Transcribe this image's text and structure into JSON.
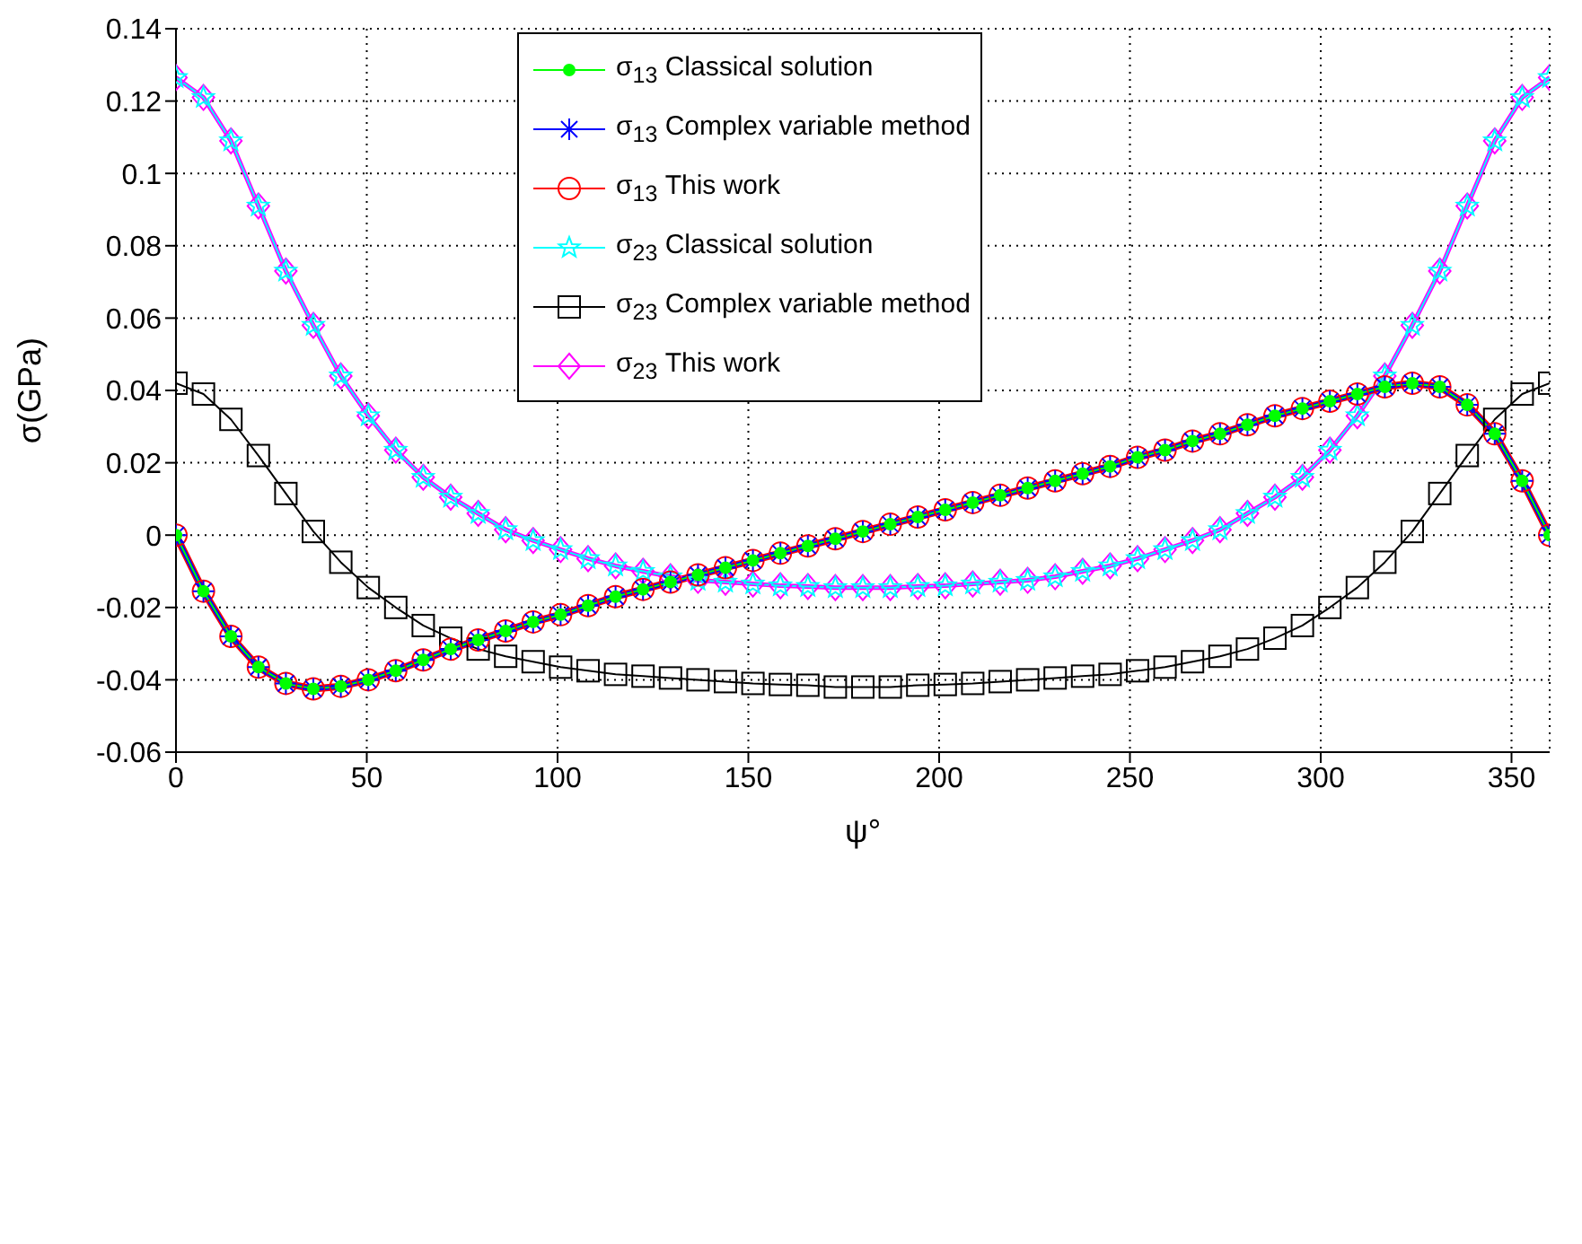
{
  "chart_data": {
    "type": "line",
    "xlabel": "ψ°",
    "ylabel": "σ(GPa)",
    "x": [
      0,
      7.2,
      14.4,
      21.6,
      28.8,
      36,
      43.2,
      50.4,
      57.6,
      64.8,
      72,
      79.2,
      86.4,
      93.6,
      100.8,
      108,
      115.2,
      122.4,
      129.6,
      136.8,
      144,
      151.2,
      158.4,
      165.6,
      172.8,
      180,
      187.2,
      194.4,
      201.6,
      208.8,
      216,
      223.2,
      230.4,
      237.6,
      244.8,
      252,
      259.2,
      266.4,
      273.6,
      280.8,
      288,
      295.2,
      302.4,
      309.6,
      316.8,
      324,
      331.2,
      338.4,
      345.6,
      352.8,
      360
    ],
    "series": [
      {
        "name": "σ$_{13}$ Classical solution",
        "color": "#00ff00",
        "marker": "circle",
        "values": [
          0,
          -0.0155,
          -0.028,
          -0.0365,
          -0.041,
          -0.0425,
          -0.0418,
          -0.04,
          -0.0375,
          -0.0345,
          -0.0315,
          -0.029,
          -0.0265,
          -0.024,
          -0.022,
          -0.0195,
          -0.017,
          -0.015,
          -0.013,
          -0.011,
          -0.009,
          -0.007,
          -0.005,
          -0.003,
          -0.001,
          0.001,
          0.003,
          0.005,
          0.007,
          0.009,
          0.011,
          0.013,
          0.015,
          0.017,
          0.019,
          0.0215,
          0.0235,
          0.026,
          0.028,
          0.0305,
          0.033,
          0.035,
          0.037,
          0.039,
          0.041,
          0.042,
          0.041,
          0.036,
          0.028,
          0.015,
          0
        ]
      },
      {
        "name": "σ$_{13}$ Complex variable method",
        "color": "#0000ff",
        "marker": "cross",
        "values": [
          0,
          -0.0155,
          -0.028,
          -0.0365,
          -0.041,
          -0.0425,
          -0.0418,
          -0.04,
          -0.0375,
          -0.0345,
          -0.0315,
          -0.029,
          -0.0265,
          -0.024,
          -0.022,
          -0.0195,
          -0.017,
          -0.015,
          -0.013,
          -0.011,
          -0.009,
          -0.007,
          -0.005,
          -0.003,
          -0.001,
          0.001,
          0.003,
          0.005,
          0.007,
          0.009,
          0.011,
          0.013,
          0.015,
          0.017,
          0.019,
          0.0215,
          0.0235,
          0.026,
          0.028,
          0.0305,
          0.033,
          0.035,
          0.037,
          0.039,
          0.041,
          0.042,
          0.041,
          0.036,
          0.028,
          0.015,
          0
        ]
      },
      {
        "name": "σ$_{13}$ This work",
        "color": "#ff0000",
        "marker": "circle",
        "values": [
          0,
          -0.0155,
          -0.028,
          -0.0365,
          -0.041,
          -0.0425,
          -0.0418,
          -0.04,
          -0.0375,
          -0.0345,
          -0.0315,
          -0.029,
          -0.0265,
          -0.024,
          -0.022,
          -0.0195,
          -0.017,
          -0.015,
          -0.013,
          -0.011,
          -0.009,
          -0.007,
          -0.005,
          -0.003,
          -0.001,
          0.001,
          0.003,
          0.005,
          0.007,
          0.009,
          0.011,
          0.013,
          0.015,
          0.017,
          0.019,
          0.0215,
          0.0235,
          0.026,
          0.028,
          0.0305,
          0.033,
          0.035,
          0.037,
          0.039,
          0.041,
          0.042,
          0.041,
          0.036,
          0.028,
          0.015,
          0
        ]
      },
      {
        "name": "σ$_{23}$ Classical solution",
        "color": "#00ffff",
        "marker": "star",
        "values": [
          0.1265,
          0.121,
          0.109,
          0.091,
          0.073,
          0.058,
          0.044,
          0.033,
          0.0235,
          0.016,
          0.0105,
          0.006,
          0.0015,
          -0.0015,
          -0.004,
          -0.0065,
          -0.0085,
          -0.01,
          -0.0115,
          -0.0125,
          -0.013,
          -0.0135,
          -0.014,
          -0.0142,
          -0.0145,
          -0.0145,
          -0.0145,
          -0.0142,
          -0.014,
          -0.0135,
          -0.013,
          -0.0125,
          -0.0115,
          -0.01,
          -0.0085,
          -0.0065,
          -0.004,
          -0.0015,
          0.0015,
          0.006,
          0.0105,
          0.016,
          0.0235,
          0.033,
          0.044,
          0.058,
          0.073,
          0.091,
          0.109,
          0.121,
          0.1265
        ]
      },
      {
        "name": "σ$_{23}$ Complex variable method",
        "color": "#000000",
        "marker": "square",
        "values": [
          0.042,
          0.039,
          0.032,
          0.022,
          0.0115,
          0.001,
          -0.0075,
          -0.0145,
          -0.02,
          -0.025,
          -0.0285,
          -0.0315,
          -0.0335,
          -0.035,
          -0.0365,
          -0.0375,
          -0.0385,
          -0.039,
          -0.0395,
          -0.04,
          -0.0405,
          -0.041,
          -0.0413,
          -0.0415,
          -0.042,
          -0.042,
          -0.042,
          -0.0415,
          -0.0413,
          -0.041,
          -0.0405,
          -0.04,
          -0.0395,
          -0.039,
          -0.0385,
          -0.0375,
          -0.0365,
          -0.035,
          -0.0335,
          -0.0315,
          -0.0285,
          -0.025,
          -0.02,
          -0.0145,
          -0.0075,
          0.001,
          0.0115,
          0.022,
          0.032,
          0.039,
          0.042
        ]
      },
      {
        "name": "σ$_{23}$ This work",
        "color": "#ff00ff",
        "marker": "diamond",
        "values": [
          0.1265,
          0.121,
          0.109,
          0.091,
          0.073,
          0.058,
          0.044,
          0.033,
          0.0235,
          0.016,
          0.0105,
          0.006,
          0.0015,
          -0.0015,
          -0.004,
          -0.0065,
          -0.0085,
          -0.01,
          -0.0115,
          -0.0125,
          -0.013,
          -0.0135,
          -0.014,
          -0.0142,
          -0.0145,
          -0.0145,
          -0.0145,
          -0.0142,
          -0.014,
          -0.0135,
          -0.013,
          -0.0125,
          -0.0115,
          -0.01,
          -0.0085,
          -0.0065,
          -0.004,
          -0.0015,
          0.0015,
          0.006,
          0.0105,
          0.016,
          0.0235,
          0.033,
          0.044,
          0.058,
          0.073,
          0.091,
          0.109,
          0.121,
          0.1265
        ]
      }
    ],
    "xlim": [
      0,
      360
    ],
    "xticks": [
      0,
      50,
      100,
      150,
      200,
      250,
      300,
      350
    ],
    "ylim": [
      -0.06,
      0.14
    ],
    "yticks": [
      -0.06,
      -0.04,
      -0.02,
      0,
      0.02,
      0.04,
      0.06,
      0.08,
      0.1,
      0.12,
      0.14
    ],
    "grid": true,
    "legend": "top",
    "line_style": "solid"
  }
}
